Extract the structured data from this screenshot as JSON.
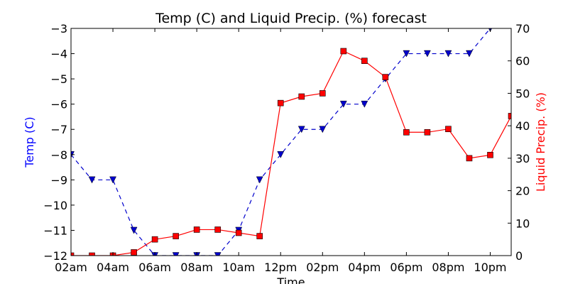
{
  "chart_data": {
    "type": "line",
    "title": "Temp (C) and Liquid Precip. (%) forecast",
    "xlabel": "Time",
    "ylabel_left": "Temp (C)",
    "ylabel_right": "Liquid Precip. (%)",
    "x_tick_labels": [
      "02am",
      "04am",
      "06am",
      "08am",
      "10am",
      "12pm",
      "02pm",
      "04pm",
      "06pm",
      "08pm",
      "10pm"
    ],
    "x_range": [
      "02am",
      "11pm"
    ],
    "ylim_left": [
      -12,
      -3
    ],
    "ylim_right": [
      0,
      70
    ],
    "y_left_ticks": [
      -12,
      -11,
      -10,
      -9,
      -8,
      -7,
      -6,
      -5,
      -4,
      -3
    ],
    "y_right_ticks": [
      0,
      10,
      20,
      30,
      40,
      50,
      60,
      70
    ],
    "x": [
      "02am",
      "03am",
      "04am",
      "05am",
      "06am",
      "07am",
      "08am",
      "09am",
      "10am",
      "11am",
      "12pm",
      "01pm",
      "02pm",
      "03pm",
      "04pm",
      "05pm",
      "06pm",
      "07pm",
      "08pm",
      "09pm",
      "10pm",
      "11pm"
    ],
    "series": [
      {
        "name": "Temp (C)",
        "axis": "left",
        "color": "#0000cc",
        "style": "dashed",
        "marker": "triangle-down",
        "values": [
          -8,
          -9,
          -9,
          -11,
          -12,
          -12,
          -12,
          -12,
          -11,
          -9,
          -8,
          -7,
          -7,
          -6,
          -6,
          -5,
          -4,
          -4,
          -4,
          -4,
          -3,
          -2
        ]
      },
      {
        "name": "Liquid Precip. (%)",
        "axis": "right",
        "color": "#ff0000",
        "style": "solid",
        "marker": "square",
        "values": [
          0,
          0,
          0,
          1,
          5,
          6,
          8,
          8,
          7,
          6,
          47,
          49,
          50,
          63,
          60,
          55,
          38,
          38,
          39,
          30,
          31,
          43
        ]
      }
    ],
    "grid": false
  }
}
